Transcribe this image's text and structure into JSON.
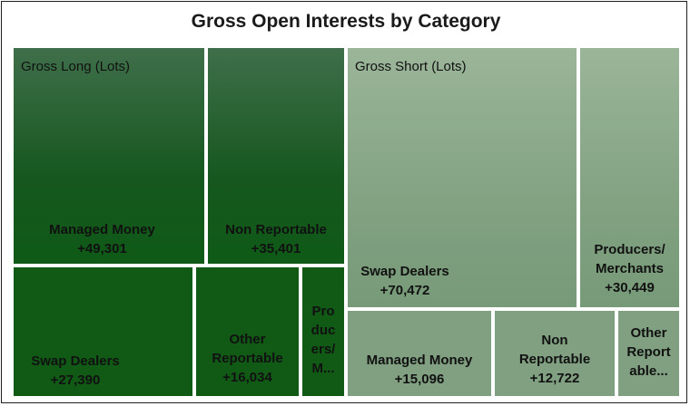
{
  "chart_data": {
    "type": "treemap",
    "title": "Gross Open Interests by Category",
    "groups": [
      {
        "name": "Gross Long (Lots)",
        "items": [
          {
            "label": "Managed Money",
            "value_text": "+49,301",
            "value": 49301
          },
          {
            "label": "Non Reportable",
            "value_text": "+35,401",
            "value": 35401
          },
          {
            "label": "Swap Dealers",
            "value_text": "+27,390",
            "value": 27390
          },
          {
            "label": "Other Reportable",
            "value_text": "+16,034",
            "value": 16034
          },
          {
            "label": "Producers/ M...",
            "value_text": "",
            "value": null
          }
        ]
      },
      {
        "name": "Gross Short (Lots)",
        "items": [
          {
            "label": "Swap Dealers",
            "value_text": "+70,472",
            "value": 70472
          },
          {
            "label": "Producers/ Merchants",
            "value_text": "+30,449",
            "value": 30449
          },
          {
            "label": "Managed Money",
            "value_text": "+15,096",
            "value": 15096
          },
          {
            "label": "Non Reportable",
            "value_text": "+12,722",
            "value": 12722
          },
          {
            "label": "Other Reportable...",
            "value_text": "",
            "value": null
          }
        ]
      }
    ],
    "colors": {
      "long": "#115a16",
      "short": "#80a081",
      "border": "#ffffff"
    }
  }
}
